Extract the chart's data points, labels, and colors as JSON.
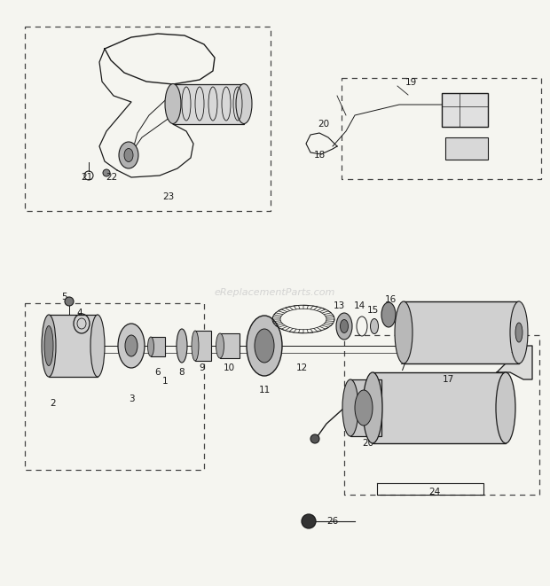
{
  "title": "",
  "bg_color": "#f5f5f0",
  "line_color": "#1a1a1a",
  "fig_width": 6.2,
  "fig_height": 6.61,
  "dpi": 100,
  "watermark": "eReplacementParts.com",
  "watermark_color": "#c8c8c8",
  "dash_color": "#444444",
  "part_label_size": 7.5
}
